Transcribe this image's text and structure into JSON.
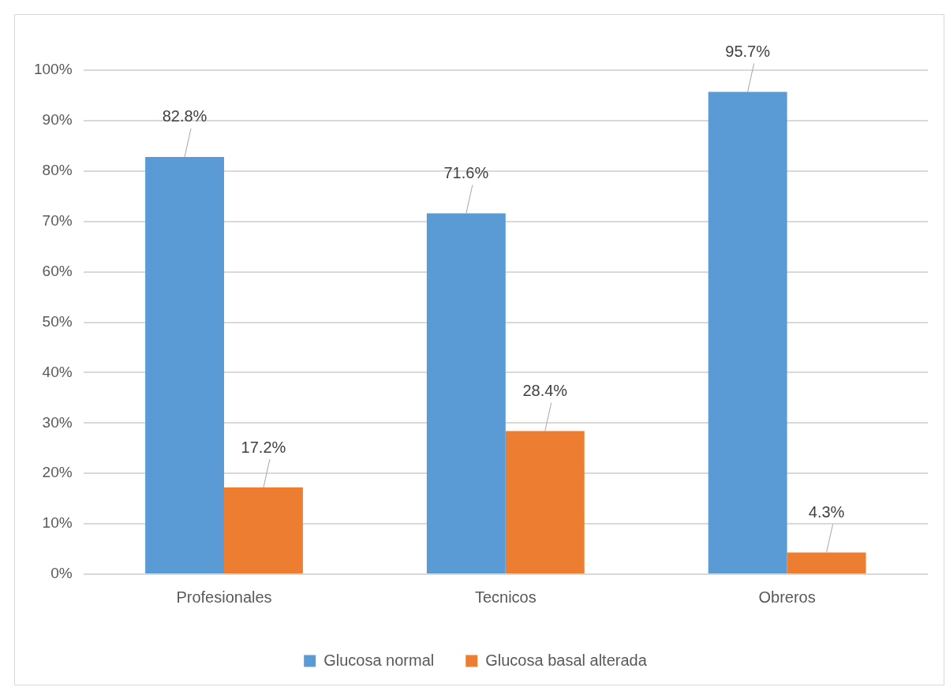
{
  "chart_data": {
    "type": "bar",
    "categories": [
      "Profesionales",
      "Tecnicos",
      "Obreros"
    ],
    "series": [
      {
        "name": "Glucosa normal",
        "color": "#5b9bd5",
        "values": [
          82.8,
          71.6,
          95.7
        ],
        "value_labels": [
          "82.8%",
          "71.6%",
          "95.7%"
        ]
      },
      {
        "name": "Glucosa basal alterada",
        "color": "#ed7d31",
        "values": [
          17.2,
          28.4,
          4.3
        ],
        "value_labels": [
          "17.2%",
          "28.4%",
          "4.3%"
        ]
      }
    ],
    "ylim": [
      0,
      100
    ],
    "yticks": [
      {
        "value": 0,
        "label": "0%"
      },
      {
        "value": 10,
        "label": "10%"
      },
      {
        "value": 20,
        "label": "20%"
      },
      {
        "value": 30,
        "label": "30%"
      },
      {
        "value": 40,
        "label": "40%"
      },
      {
        "value": 50,
        "label": "50%"
      },
      {
        "value": 60,
        "label": "60%"
      },
      {
        "value": 70,
        "label": "70%"
      },
      {
        "value": 80,
        "label": "80%"
      },
      {
        "value": 90,
        "label": "90%"
      },
      {
        "value": 100,
        "label": "100%"
      }
    ],
    "grid": "y",
    "legend": "bottom"
  }
}
